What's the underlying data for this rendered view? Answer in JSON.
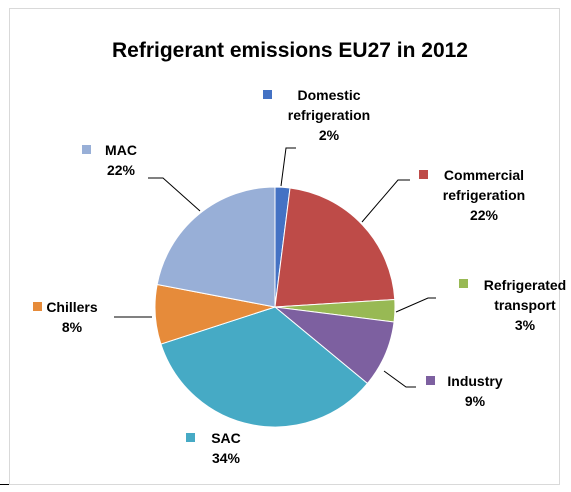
{
  "chart_data": {
    "type": "pie",
    "title": "Refrigerant emissions EU27 in 2012",
    "slices": [
      {
        "label": [
          "Domestic",
          "refrigeration"
        ],
        "pct": "2%",
        "value": 2,
        "color": "#4472C4"
      },
      {
        "label": [
          "Commercial",
          "refrigeration"
        ],
        "pct": "22%",
        "value": 22,
        "color": "#BE4B48"
      },
      {
        "label": [
          "Refrigerated",
          "transport"
        ],
        "pct": "3%",
        "value": 3,
        "color": "#98B954"
      },
      {
        "label": [
          "Industry"
        ],
        "pct": "9%",
        "value": 9,
        "color": "#7D60A0"
      },
      {
        "label": [
          "SAC"
        ],
        "pct": "34%",
        "value": 34,
        "color": "#46AAC5"
      },
      {
        "label": [
          "Chillers"
        ],
        "pct": "8%",
        "value": 8,
        "color": "#E68B3A"
      },
      {
        "label": [
          "MAC"
        ],
        "pct": "22%",
        "value": 22,
        "color": "#98AFD7"
      }
    ]
  }
}
